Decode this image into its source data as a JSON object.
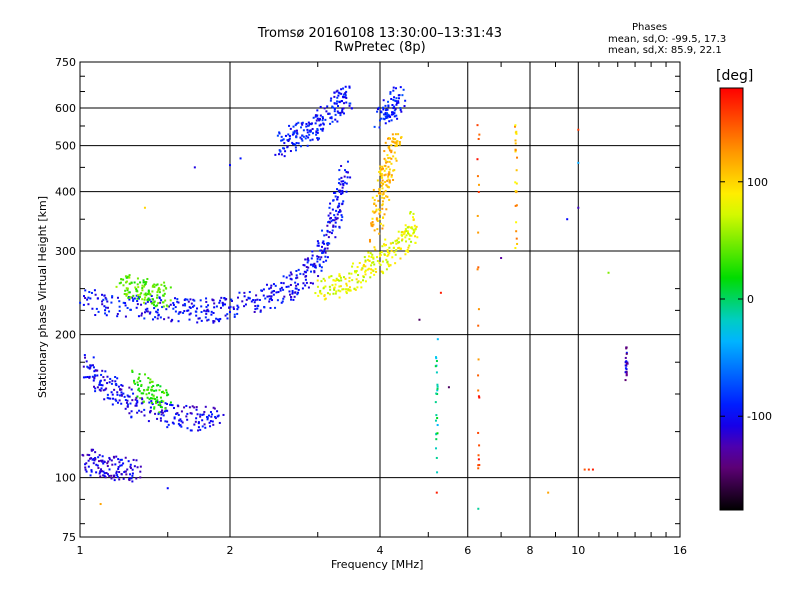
{
  "chart_data": {
    "type": "scatter",
    "title_line1": "Tromsø 20160108 13:30:00–13:31:43",
    "title_line2": "RwPretec (8p)",
    "stats": {
      "header": "Phases",
      "line_o": "mean, sd,O: -99.5, 17.3",
      "line_x": "mean, sd,X:  85.9, 22.1"
    },
    "xlabel": "Frequency [MHz]",
    "ylabel": "Stationary phase Virtual Height [km]",
    "xscale": "log",
    "yscale": "log",
    "xlim": [
      1,
      16
    ],
    "ylim": [
      75,
      750
    ],
    "xticks": [
      1,
      2,
      4,
      6,
      8,
      10,
      16
    ],
    "yticks": [
      75,
      100,
      200,
      300,
      400,
      500,
      600,
      750
    ],
    "grid": true,
    "colorbar": {
      "label": "[deg]",
      "range": [
        -180,
        180
      ],
      "ticks": [
        100,
        0,
        -100
      ]
    },
    "traces": [
      {
        "name": "",
        "phase": -100,
        "points": [
          [
            1.0,
            235
          ],
          [
            1.2,
            232
          ],
          [
            1.4,
            228
          ],
          [
            1.6,
            226
          ],
          [
            1.8,
            225
          ],
          [
            2.0,
            228
          ],
          [
            2.3,
            236
          ],
          [
            2.6,
            250
          ],
          [
            2.8,
            262
          ],
          [
            3.0,
            285
          ],
          [
            3.2,
            330
          ],
          [
            3.3,
            380
          ],
          [
            3.4,
            450
          ]
        ]
      },
      {
        "name": "",
        "phase": -105,
        "points": [
          [
            1.02,
            175
          ],
          [
            1.1,
            160
          ],
          [
            1.2,
            150
          ],
          [
            1.3,
            140
          ],
          [
            1.5,
            135
          ],
          [
            1.7,
            133
          ],
          [
            1.9,
            133
          ]
        ]
      },
      {
        "name": "",
        "phase": -110,
        "points": [
          [
            1.02,
            110
          ],
          [
            1.1,
            106
          ],
          [
            1.2,
            104
          ],
          [
            1.3,
            103
          ]
        ]
      },
      {
        "name": "",
        "phase": -95,
        "points": [
          [
            2.5,
            500
          ],
          [
            2.7,
            520
          ],
          [
            2.9,
            540
          ],
          [
            3.1,
            570
          ],
          [
            3.3,
            610
          ],
          [
            3.45,
            640
          ]
        ]
      },
      {
        "name": "",
        "phase": 80,
        "points": [
          [
            3.0,
            250
          ],
          [
            3.3,
            255
          ],
          [
            3.6,
            265
          ],
          [
            3.9,
            282
          ],
          [
            4.2,
            300
          ],
          [
            4.5,
            320
          ],
          [
            4.7,
            345
          ]
        ]
      },
      {
        "name": "",
        "phase": 110,
        "points": [
          [
            3.9,
            330
          ],
          [
            4.0,
            380
          ],
          [
            4.1,
            430
          ],
          [
            4.2,
            480
          ],
          [
            4.3,
            520
          ]
        ]
      },
      {
        "name": "",
        "phase": -90,
        "points": [
          [
            4.0,
            560
          ],
          [
            4.2,
            600
          ],
          [
            4.4,
            630
          ]
        ]
      },
      {
        "name": "",
        "phase": 40,
        "points": [
          [
            1.2,
            255
          ],
          [
            1.3,
            250
          ],
          [
            1.4,
            245
          ],
          [
            1.5,
            240
          ]
        ]
      },
      {
        "name": "",
        "phase": 30,
        "points": [
          [
            1.3,
            160
          ],
          [
            1.4,
            150
          ],
          [
            1.5,
            145
          ]
        ]
      }
    ],
    "columns": [
      {
        "freq": 5.2,
        "hmin": 100,
        "hmax": 200,
        "phase": -10
      },
      {
        "freq": 6.3,
        "hmin": 100,
        "hmax": 620,
        "phase": 150
      },
      {
        "freq": 7.5,
        "hmin": 300,
        "hmax": 560,
        "phase": 110
      },
      {
        "freq": 12.5,
        "hmin": 160,
        "hmax": 190,
        "phase": -120
      }
    ],
    "isolated": [
      {
        "f": 10.5,
        "h": 104,
        "phase": 160
      },
      {
        "f": 10.7,
        "h": 104,
        "phase": 170
      },
      {
        "f": 10.3,
        "h": 104,
        "phase": 150
      },
      {
        "f": 9.5,
        "h": 350,
        "phase": -100
      },
      {
        "f": 10.0,
        "h": 370,
        "phase": -120
      },
      {
        "f": 10.0,
        "h": 460,
        "phase": -40
      },
      {
        "f": 10.0,
        "h": 540,
        "phase": 160
      },
      {
        "f": 1.1,
        "h": 88,
        "phase": 120
      },
      {
        "f": 1.5,
        "h": 95,
        "phase": -100
      },
      {
        "f": 8.7,
        "h": 93,
        "phase": 120
      },
      {
        "f": 6.3,
        "h": 86,
        "phase": -10
      },
      {
        "f": 5.2,
        "h": 93,
        "phase": 170
      },
      {
        "f": 2.0,
        "h": 455,
        "phase": -100
      },
      {
        "f": 2.1,
        "h": 470,
        "phase": -95
      },
      {
        "f": 1.7,
        "h": 450,
        "phase": -110
      },
      {
        "f": 4.8,
        "h": 215,
        "phase": -150
      },
      {
        "f": 5.5,
        "h": 155,
        "phase": -150
      },
      {
        "f": 7.0,
        "h": 290,
        "phase": -130
      },
      {
        "f": 11.5,
        "h": 270,
        "phase": 50
      },
      {
        "f": 1.35,
        "h": 370,
        "phase": 100
      },
      {
        "f": 5.3,
        "h": 245,
        "phase": 170
      }
    ]
  }
}
